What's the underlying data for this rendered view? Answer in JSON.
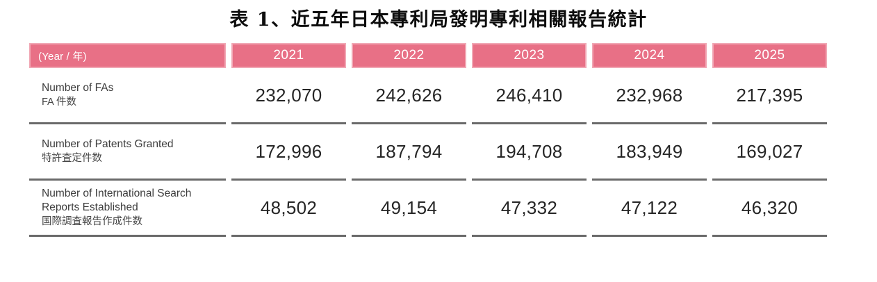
{
  "title": "表 1、近五年日本專利局發明專利相關報告統計",
  "table": {
    "header": {
      "year_label": "(Year / 年)",
      "years": [
        "2021",
        "2022",
        "2023",
        "2024",
        "2025"
      ]
    },
    "rows": [
      {
        "label_en": "Number of FAs",
        "label_ja": "FA 件数",
        "values": [
          "232,070",
          "242,626",
          "246,410",
          "232,968",
          "217,395"
        ]
      },
      {
        "label_en": "Number of Patents Granted",
        "label_ja": "特許査定件数",
        "values": [
          "172,996",
          "187,794",
          "194,708",
          "183,949",
          "169,027"
        ]
      },
      {
        "label_en": "Number of International Search Reports Established",
        "label_ja": "国際調査報告作成件数",
        "values": [
          "48,502",
          "49,154",
          "47,332",
          "47,122",
          "46,320"
        ]
      }
    ]
  },
  "colors": {
    "header_bg": "#e87086",
    "header_rim": "#f1a7b4",
    "header_text": "#ffffff",
    "separator": "#6a6a6a",
    "value_text": "#262626",
    "label_text": "#3c3c3c"
  }
}
